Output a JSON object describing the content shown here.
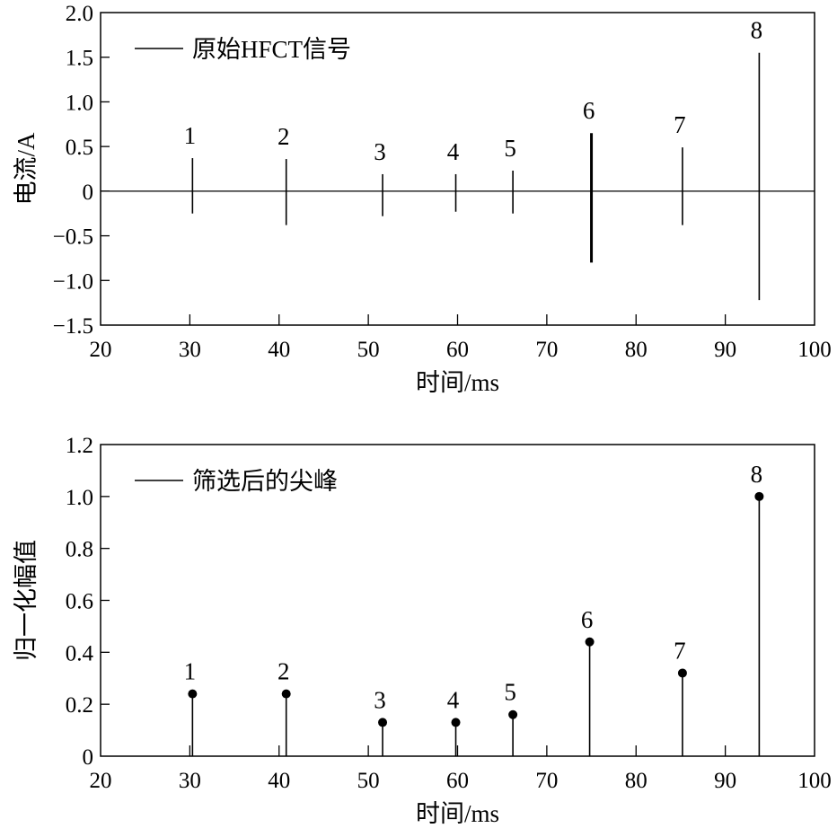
{
  "chart_data": [
    {
      "type": "line",
      "xlabel": "时间/ms",
      "ylabel": "电流/A",
      "xlim": [
        20,
        100
      ],
      "ylim": [
        -1.5,
        2.0
      ],
      "xticks": [
        20,
        30,
        40,
        50,
        60,
        70,
        80,
        90,
        100
      ],
      "yticks": [
        2.0,
        1.5,
        1.0,
        0.5,
        0,
        -0.5,
        -1.0,
        -1.5
      ],
      "ytick_labels": [
        "2.0",
        "1.5",
        "1.0",
        "0.5",
        "0",
        "−0.5",
        "−1.0",
        "−1.5"
      ],
      "grid": false,
      "legend": {
        "position": "top-left",
        "entries": [
          "原始HFCT信号"
        ]
      },
      "series": [
        {
          "name": "原始HFCT信号",
          "pulses": [
            {
              "label": "1",
              "x": 30.3,
              "ymax": 0.37,
              "ymin": -0.25
            },
            {
              "label": "2",
              "x": 40.8,
              "ymax": 0.36,
              "ymin": -0.38
            },
            {
              "label": "3",
              "x": 51.6,
              "ymax": 0.19,
              "ymin": -0.28
            },
            {
              "label": "4",
              "x": 59.8,
              "ymax": 0.19,
              "ymin": -0.23
            },
            {
              "label": "5",
              "x": 66.2,
              "ymax": 0.23,
              "ymin": -0.25
            },
            {
              "label": "6",
              "x": 75.0,
              "ymax": 0.65,
              "ymin": -0.8
            },
            {
              "label": "7",
              "x": 85.2,
              "ymax": 0.49,
              "ymin": -0.38
            },
            {
              "label": "8",
              "x": 93.8,
              "ymax": 1.55,
              "ymin": -1.22
            }
          ],
          "baseline": 0
        }
      ]
    },
    {
      "type": "stem",
      "xlabel": "时间/ms",
      "ylabel": "归一化幅值",
      "xlim": [
        20,
        100
      ],
      "ylim": [
        0,
        1.2
      ],
      "xticks": [
        20,
        30,
        40,
        50,
        60,
        70,
        80,
        90,
        100
      ],
      "yticks": [
        1.2,
        1.0,
        0.8,
        0.6,
        0.4,
        0.2,
        0
      ],
      "ytick_labels": [
        "1.2",
        "1.0",
        "0.8",
        "0.6",
        "0.4",
        "0.2",
        "0"
      ],
      "grid": false,
      "legend": {
        "position": "top-left",
        "entries": [
          "筛选后的尖峰"
        ]
      },
      "series": [
        {
          "name": "筛选后的尖峰",
          "points": [
            {
              "label": "1",
              "x": 30.3,
              "y": 0.24
            },
            {
              "label": "2",
              "x": 40.8,
              "y": 0.24
            },
            {
              "label": "3",
              "x": 51.6,
              "y": 0.13
            },
            {
              "label": "4",
              "x": 59.8,
              "y": 0.13
            },
            {
              "label": "5",
              "x": 66.2,
              "y": 0.16
            },
            {
              "label": "6",
              "x": 74.8,
              "y": 0.44
            },
            {
              "label": "7",
              "x": 85.2,
              "y": 0.32
            },
            {
              "label": "8",
              "x": 93.8,
              "y": 1.0
            }
          ]
        }
      ]
    }
  ]
}
